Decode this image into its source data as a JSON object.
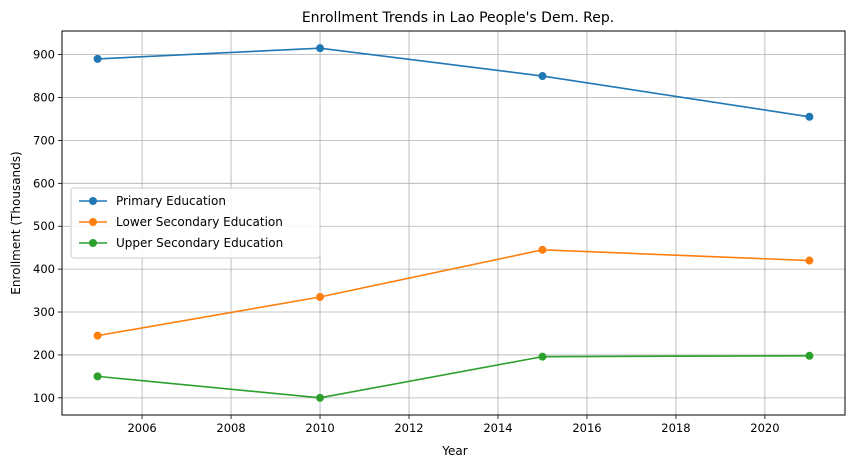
{
  "chart_data": {
    "type": "line",
    "title": "Enrollment Trends in Lao People's Dem. Rep.",
    "xlabel": "Year",
    "ylabel": "Enrollment (Thousands)",
    "xlim": [
      2004.2,
      2021.8
    ],
    "ylim": [
      60,
      955
    ],
    "xticks": [
      2006,
      2008,
      2010,
      2012,
      2014,
      2016,
      2018,
      2020
    ],
    "yticks": [
      100,
      200,
      300,
      400,
      500,
      600,
      700,
      800,
      900
    ],
    "grid": true,
    "legend_position": "center-left",
    "x": [
      2005,
      2010,
      2015,
      2021
    ],
    "series": [
      {
        "name": "Primary Education",
        "color": "#1f77b4",
        "values": [
          890,
          915,
          850,
          755
        ]
      },
      {
        "name": "Lower Secondary Education",
        "color": "#ff7f0e",
        "values": [
          245,
          335,
          445,
          420
        ]
      },
      {
        "name": "Upper Secondary Education",
        "color": "#2ca02c",
        "values": [
          150,
          100,
          196,
          198
        ]
      }
    ]
  }
}
